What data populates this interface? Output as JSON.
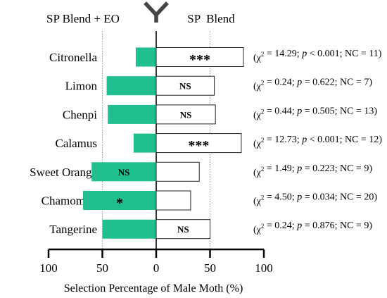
{
  "chart_data": {
    "type": "bar",
    "orientation": "horizontal-diverging",
    "left_series_label": "SP Blend + EO",
    "right_series_label": "SP  Blend",
    "xlabel": "Selection Percentage of Male Moth (%)",
    "xlim": [
      -100,
      100
    ],
    "ticks": [
      {
        "value": -100,
        "label": "100"
      },
      {
        "value": -50,
        "label": "50"
      },
      {
        "value": 0,
        "label": "0"
      },
      {
        "value": 50,
        "label": "50"
      },
      {
        "value": 100,
        "label": "100"
      }
    ],
    "grid_reference_lines": [
      -50,
      50
    ],
    "categories": [
      {
        "name": "Citronella",
        "left": 19,
        "right": 81,
        "sig": "***",
        "stat": {
          "chi": "14.29",
          "p_op": "<",
          "p": "0.001",
          "nc": "11"
        }
      },
      {
        "name": "Limon",
        "left": 46,
        "right": 54,
        "sig": "NS",
        "stat": {
          "chi": "0.24",
          "p_op": "=",
          "p": "0.622",
          "nc": "7"
        }
      },
      {
        "name": "Chenpi",
        "left": 45,
        "right": 55,
        "sig": "NS",
        "stat": {
          "chi": "0.44",
          "p_op": "=",
          "p": "0.505",
          "nc": "13"
        }
      },
      {
        "name": "Calamus",
        "left": 21,
        "right": 79,
        "sig": "***",
        "stat": {
          "chi": "12.73",
          "p_op": "<",
          "p": "0.001",
          "nc": "12"
        }
      },
      {
        "name": "Sweet Orange",
        "left": 60,
        "right": 40,
        "sig": "NS",
        "stat": {
          "chi": "1.49",
          "p_op": "=",
          "p": "0.223",
          "nc": "9"
        }
      },
      {
        "name": "Chamomile",
        "left": 68,
        "right": 32,
        "sig": "*",
        "stat": {
          "chi": "4.50",
          "p_op": "=",
          "p": "0.034",
          "nc": "20"
        }
      },
      {
        "name": "Tangerine",
        "left": 50,
        "right": 50,
        "sig": "NS",
        "stat": {
          "chi": "0.24",
          "p_op": "=",
          "p": "0.876",
          "nc": "9"
        }
      }
    ],
    "colors": {
      "left_bar": "#1fbf8f",
      "right_bar": "#ffffff",
      "bar_stroke": "#222222",
      "axis": "#000000",
      "ref_line": "#999999",
      "y_icon": "#444444"
    }
  }
}
